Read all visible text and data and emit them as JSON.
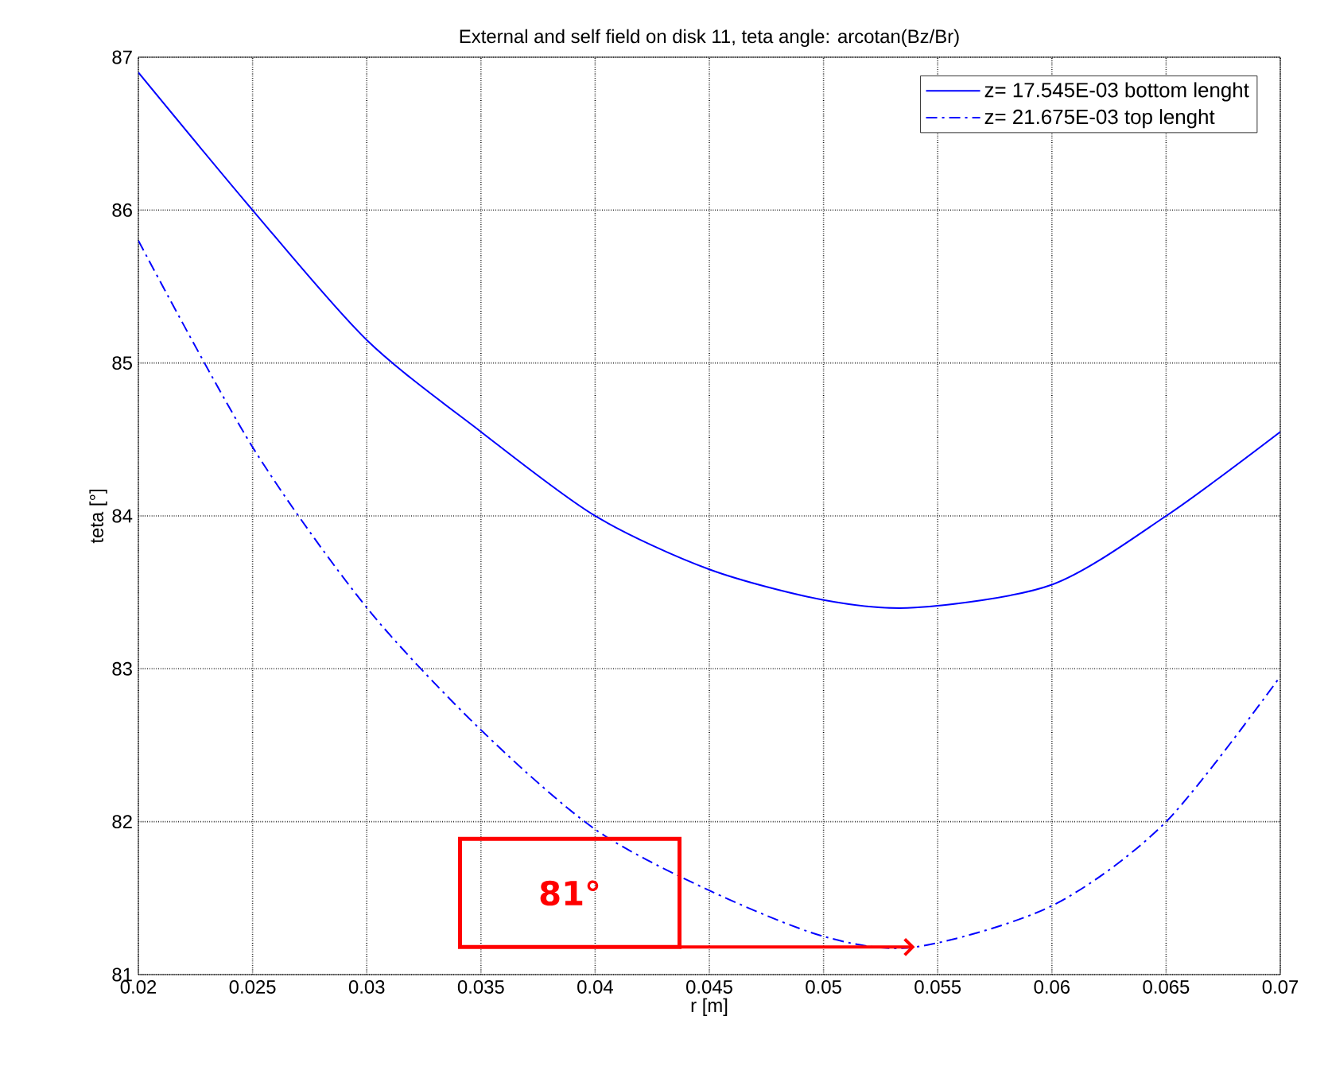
{
  "chart_data": {
    "type": "line",
    "title": "External and self field on disk 11, teta angle: arcotan(Bz/Br)",
    "xlabel": "r [m]",
    "ylabel": "teta [°]",
    "x": [
      0.02,
      0.025,
      0.03,
      0.035,
      0.04,
      0.045,
      0.05,
      0.054,
      0.06,
      0.065,
      0.07
    ],
    "series": [
      {
        "name": "z= 17.545E-03 bottom lenght",
        "color": "#0000ff",
        "line_style": "solid",
        "values": [
          86.9,
          86.0,
          85.15,
          84.55,
          84.0,
          83.65,
          83.45,
          83.4,
          83.55,
          84.0,
          84.55
        ]
      },
      {
        "name": "z= 21.675E-03 top lenght",
        "color": "#0000ff",
        "line_style": "dashdot",
        "values": [
          85.8,
          84.45,
          83.4,
          82.6,
          81.95,
          81.55,
          81.25,
          81.18,
          81.45,
          82.0,
          82.95
        ]
      }
    ],
    "xlim": [
      0.02,
      0.07
    ],
    "ylim": [
      81,
      87
    ],
    "xticks": [
      0.02,
      0.025,
      0.03,
      0.035,
      0.04,
      0.045,
      0.05,
      0.055,
      0.06,
      0.065,
      0.07
    ],
    "yticks": [
      81,
      82,
      83,
      84,
      85,
      86,
      87
    ],
    "grid": true,
    "legend": "top right",
    "annotations": [
      "81°"
    ]
  }
}
